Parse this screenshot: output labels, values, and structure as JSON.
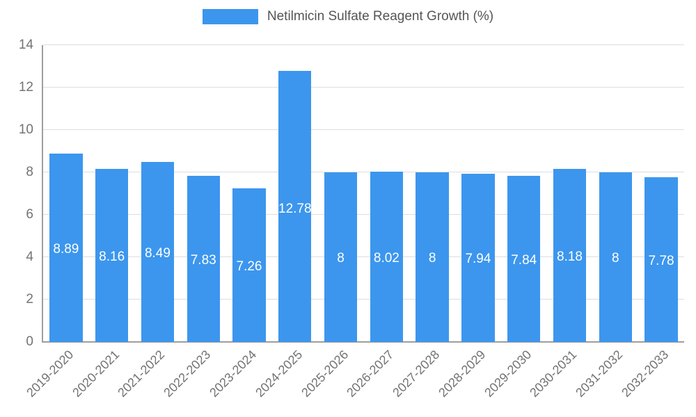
{
  "chart_data": {
    "type": "bar",
    "title": "Netilmicin Sulfate Reagent Growth (%)",
    "categories": [
      "2019-2020",
      "2020-2021",
      "2021-2022",
      "2022-2023",
      "2023-2024",
      "2024-2025",
      "2025-2026",
      "2026-2027",
      "2027-2028",
      "2028-2029",
      "2029-2030",
      "2030-2031",
      "2031-2032",
      "2032-2033"
    ],
    "values": [
      8.89,
      8.16,
      8.49,
      7.83,
      7.26,
      12.78,
      8,
      8.02,
      8,
      7.94,
      7.84,
      8.18,
      8,
      7.78
    ],
    "xlabel": "",
    "ylabel": "",
    "ylim": [
      0,
      14
    ],
    "yticks": [
      0,
      2,
      4,
      6,
      8,
      10,
      12,
      14
    ],
    "grid": true,
    "legend_position": "top",
    "bar_color": "#3c96ee",
    "colors": {
      "grid": "#dddddd",
      "axis": "#9e9e9e",
      "tick_text": "#737373",
      "title_text": "#555555",
      "bar_label": "#ffffff"
    }
  }
}
